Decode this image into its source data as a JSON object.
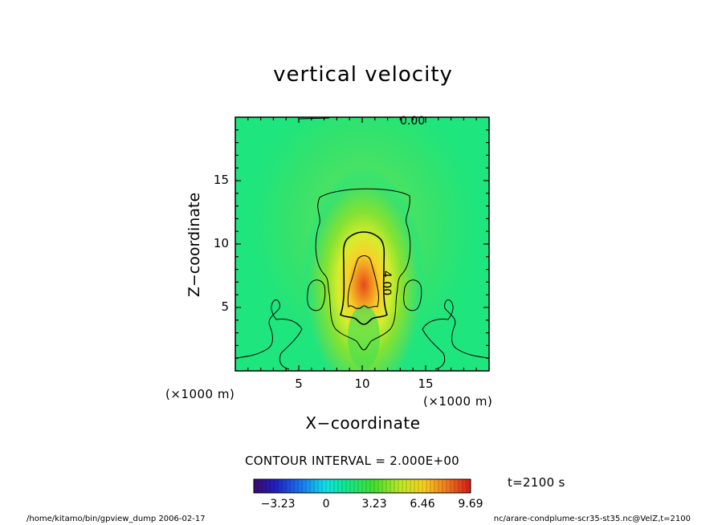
{
  "chart_data": {
    "type": "heatmap",
    "title": "vertical velocity",
    "xlabel": "X−coordinate",
    "ylabel": "Z−coordinate",
    "x_unit_labels": [
      "(×1000 m)",
      "(×1000 m)"
    ],
    "xlim": [
      0,
      20
    ],
    "ylim": [
      0,
      20
    ],
    "x_ticks": [
      5,
      10,
      15
    ],
    "y_ticks": [
      5,
      10,
      15
    ],
    "contour_interval_text": "CONTOUR INTERVAL = 2.000E+00",
    "contour_labels": [
      "0.00",
      "4.00"
    ],
    "colorbar": {
      "min": -4.85,
      "max": 9.69,
      "tick_labels": [
        "−3.23",
        "0",
        "3.23",
        "6.46",
        "9.69"
      ],
      "tick_values": [
        -3.23,
        0,
        3.23,
        6.46,
        9.69
      ]
    },
    "field_peak": {
      "x": 10,
      "z": 7.5,
      "value": 7.5
    },
    "time_text": "t=2100 s"
  },
  "footer": {
    "left": "/home/kitamo/bin/gpview_dump  2006-02-17",
    "right": "nc/arare-condplume-scr35-st35.nc@VelZ,t=2100"
  }
}
